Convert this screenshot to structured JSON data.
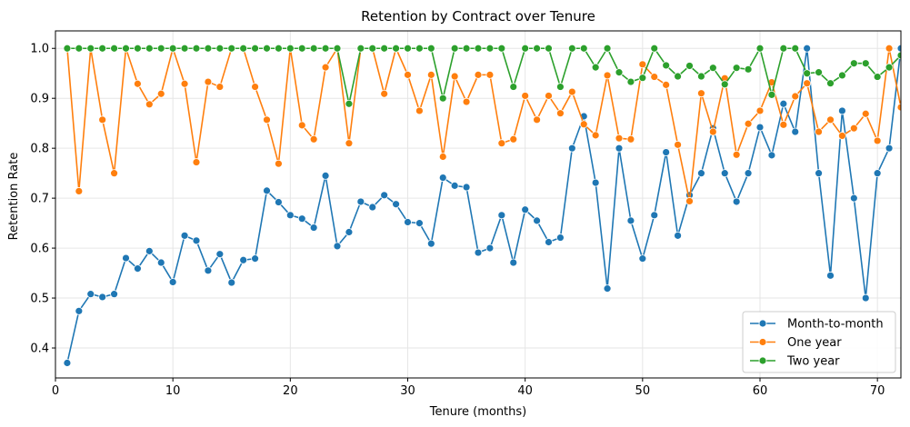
{
  "chart_data": {
    "type": "line",
    "title": "Retention by Contract over Tenure",
    "xlabel": "Tenure (months)",
    "ylabel": "Retention Rate",
    "xlim": [
      0,
      72
    ],
    "ylim": [
      0.34,
      1.035
    ],
    "xticks": [
      0,
      10,
      20,
      30,
      40,
      50,
      60,
      70
    ],
    "yticks": [
      0.4,
      0.5,
      0.6,
      0.7,
      0.8,
      0.9,
      1.0
    ],
    "xtick_labels": [
      "0",
      "10",
      "20",
      "30",
      "40",
      "50",
      "60",
      "70"
    ],
    "ytick_labels": [
      "0.4",
      "0.5",
      "0.6",
      "0.7",
      "0.8",
      "0.9",
      "1.0"
    ],
    "grid": true,
    "legend_position": "bottom-right",
    "x": [
      1,
      2,
      3,
      4,
      5,
      6,
      7,
      8,
      9,
      10,
      11,
      12,
      13,
      14,
      15,
      16,
      17,
      18,
      19,
      20,
      21,
      22,
      23,
      24,
      25,
      26,
      27,
      28,
      29,
      30,
      31,
      32,
      33,
      34,
      35,
      36,
      37,
      38,
      39,
      40,
      41,
      42,
      43,
      44,
      45,
      46,
      47,
      48,
      49,
      50,
      51,
      52,
      53,
      54,
      55,
      56,
      57,
      58,
      59,
      60,
      61,
      62,
      63,
      64,
      65,
      66,
      67,
      68,
      69,
      70,
      71,
      72
    ],
    "series": [
      {
        "name": "Month-to-month",
        "color": "#1f77b4",
        "values": [
          0.37,
          0.474,
          0.508,
          0.502,
          0.508,
          0.58,
          0.559,
          0.594,
          0.571,
          0.532,
          0.625,
          0.615,
          0.555,
          0.588,
          0.531,
          0.576,
          0.579,
          0.715,
          0.692,
          0.666,
          0.659,
          0.641,
          0.745,
          0.604,
          0.632,
          0.693,
          0.682,
          0.706,
          0.688,
          0.652,
          0.65,
          0.609,
          0.741,
          0.725,
          0.722,
          0.591,
          0.6,
          0.666,
          0.571,
          0.677,
          0.655,
          0.612,
          0.621,
          0.8,
          0.864,
          0.731,
          0.519,
          0.8,
          0.655,
          0.579,
          0.666,
          0.792,
          0.625,
          0.706,
          0.75,
          0.84,
          0.75,
          0.693,
          0.75,
          0.842,
          0.786,
          0.889,
          0.833,
          1.0,
          0.75,
          0.545,
          0.875,
          0.7,
          0.5,
          0.75,
          0.8,
          1.0
        ]
      },
      {
        "name": "One year",
        "color": "#ff7f0e",
        "values": [
          1.0,
          0.714,
          1.0,
          0.857,
          0.75,
          1.0,
          0.929,
          0.888,
          0.909,
          1.0,
          0.929,
          0.772,
          0.933,
          0.923,
          1.0,
          1.0,
          0.923,
          0.857,
          0.769,
          1.0,
          0.846,
          0.818,
          0.962,
          1.0,
          0.81,
          1.0,
          1.0,
          0.909,
          1.0,
          0.947,
          0.875,
          0.947,
          0.783,
          0.944,
          0.893,
          0.947,
          0.947,
          0.81,
          0.818,
          0.905,
          0.857,
          0.905,
          0.87,
          0.913,
          0.848,
          0.826,
          0.946,
          0.82,
          0.818,
          0.968,
          0.943,
          0.927,
          0.807,
          0.694,
          0.91,
          0.833,
          0.94,
          0.787,
          0.849,
          0.875,
          0.932,
          0.847,
          0.904,
          0.93,
          0.833,
          0.857,
          0.825,
          0.84,
          0.869,
          0.815,
          1.0,
          0.882
        ]
      },
      {
        "name": "Two year",
        "color": "#2ca02c",
        "values": [
          1,
          1,
          1,
          1,
          1,
          1,
          1,
          1,
          1,
          1,
          1,
          1,
          1,
          1,
          1,
          1,
          1,
          1,
          1,
          1,
          1,
          1,
          1,
          1,
          0.889,
          1,
          1,
          1,
          1,
          1,
          1,
          1,
          0.9,
          1,
          1,
          1,
          1,
          1,
          0.923,
          1,
          1,
          1,
          0.923,
          1,
          1,
          0.962,
          1,
          0.952,
          0.933,
          0.941,
          1,
          0.966,
          0.944,
          0.965,
          0.944,
          0.961,
          0.928,
          0.961,
          0.958,
          1,
          0.907,
          1,
          1,
          0.95,
          0.952,
          0.93,
          0.946,
          0.97,
          0.97,
          0.943,
          0.962,
          0.986
        ]
      }
    ]
  }
}
